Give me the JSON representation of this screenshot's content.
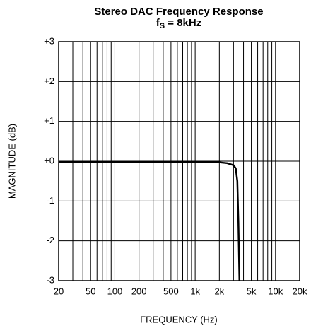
{
  "chart_data": {
    "type": "line",
    "title": "Stereo DAC Frequency Response",
    "subtitle": {
      "main": "f",
      "sub": "S",
      "rest": " = 8kHz"
    },
    "x_label": "FREQUENCY (Hz)",
    "y_label": "MAGNITUDE (dB)",
    "x_scale": "log",
    "grid": true,
    "xlim": [
      20,
      20000
    ],
    "ylim": [
      -3,
      3
    ],
    "xticks": [
      20,
      50,
      100,
      200,
      500,
      {
        "value": 1000,
        "label": "1k"
      },
      {
        "value": 2000,
        "label": "2k"
      },
      {
        "value": 5000,
        "label": "5k"
      },
      {
        "value": 10000,
        "label": "10k"
      },
      {
        "value": 20000,
        "label": "20k"
      }
    ],
    "x_minor_grid": [
      30,
      40,
      60,
      70,
      80,
      90,
      300,
      400,
      600,
      700,
      800,
      900,
      3000,
      4000,
      6000,
      7000,
      8000,
      9000
    ],
    "yticks": [
      {
        "value": 3,
        "label": "+3"
      },
      {
        "value": 2,
        "label": "+2"
      },
      {
        "value": 1,
        "label": "+1"
      },
      {
        "value": 0,
        "label": "+0"
      },
      -1,
      -2,
      -3
    ],
    "x": [
      20,
      100,
      500,
      1000,
      2000,
      2500,
      3000,
      3200,
      3350,
      3450,
      3560
    ],
    "series": [
      {
        "color": "#000000",
        "values": [
          -0.02,
          -0.02,
          -0.02,
          -0.03,
          -0.03,
          -0.05,
          -0.1,
          -0.18,
          -0.5,
          -1.5,
          -3
        ]
      }
    ]
  }
}
